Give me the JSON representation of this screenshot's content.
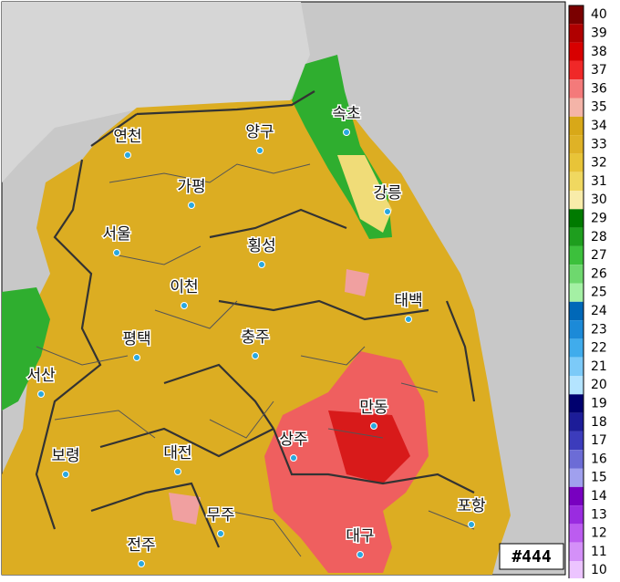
{
  "cities": [
    "연천",
    "양구",
    "속초",
    "가평",
    "강릉",
    "서울",
    "횡성",
    "이천",
    "태백",
    "평택",
    "충주",
    "서산",
    "만동",
    "상주",
    "보령",
    "대전",
    "무주",
    "포항",
    "전주",
    "대구"
  ],
  "badge": "#444",
  "scale": {
    "labels": [
      40,
      39,
      38,
      37,
      36,
      35,
      34,
      33,
      32,
      31,
      30,
      29,
      28,
      27,
      26,
      25,
      24,
      23,
      22,
      21,
      20,
      19,
      18,
      17,
      16,
      15,
      14,
      13,
      12,
      11,
      10
    ],
    "colors": [
      "#7a0000",
      "#b00000",
      "#d80000",
      "#f02828",
      "#f47a7a",
      "#f4b4a8",
      "#d8a818",
      "#dfb226",
      "#e8c438",
      "#f0d860",
      "#f8ecaa",
      "#007a00",
      "#1e9e1e",
      "#3cc03c",
      "#6ed86e",
      "#a4f0a4",
      "#0068b8",
      "#1c8ad8",
      "#40acec",
      "#7ccaf8",
      "#b4e4ff",
      "#00006e",
      "#1c1c98",
      "#3c3cbc",
      "#6c6cd6",
      "#a0a0ee",
      "#7800c0",
      "#9a2ce0",
      "#bc5cf0",
      "#d490f8",
      "#ecc4ff"
    ]
  }
}
